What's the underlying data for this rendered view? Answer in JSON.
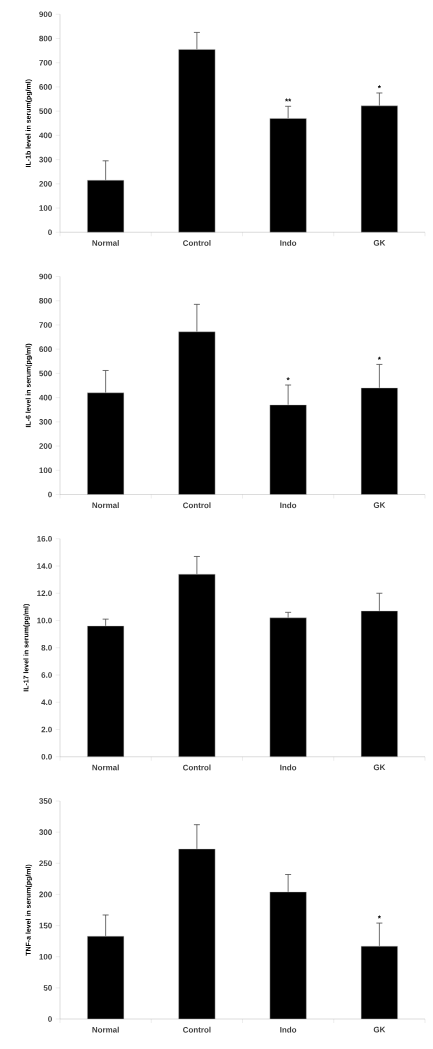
{
  "chart_data": [
    {
      "type": "bar",
      "ylabel": "IL-1b level in serum(pg/ml)",
      "categories": [
        "Normal",
        "Control",
        "Indo",
        "GK"
      ],
      "values": [
        215,
        755,
        470,
        522
      ],
      "errors": [
        [
          215,
          295
        ],
        [
          755,
          825
        ],
        [
          470,
          520
        ],
        [
          522,
          575
        ]
      ],
      "color": "#000000",
      "ylim": [
        0,
        900
      ],
      "yticks": [
        0,
        100,
        200,
        300,
        400,
        500,
        600,
        700,
        800,
        900
      ],
      "annotations": [
        {
          "text": "**",
          "x": "Indo",
          "y": 520
        },
        {
          "text": "*",
          "x": "GK",
          "y": 575
        }
      ]
    },
    {
      "type": "bar",
      "ylabel": "IL-6 level in serum(pg/ml)",
      "categories": [
        "Normal",
        "Control",
        "Indo",
        "GK"
      ],
      "values": [
        420,
        672,
        370,
        440
      ],
      "errors": [
        [
          420,
          512
        ],
        [
          672,
          785
        ],
        [
          370,
          452
        ],
        [
          440,
          537
        ]
      ],
      "color": "#000000",
      "ylim": [
        0,
        900
      ],
      "yticks": [
        0,
        100,
        200,
        300,
        400,
        500,
        600,
        700,
        800,
        900
      ],
      "annotations": [
        {
          "text": "*",
          "x": "Indo",
          "y": 452
        },
        {
          "text": "*",
          "x": "GK",
          "y": 537
        }
      ]
    },
    {
      "type": "bar",
      "ylabel": "IL-17 level in serum(pg/ml)",
      "categories": [
        "Normal",
        "Control",
        "Indo",
        "GK"
      ],
      "values": [
        9.6,
        13.4,
        10.2,
        10.7
      ],
      "errors": [
        [
          9.6,
          10.1
        ],
        [
          13.4,
          14.7
        ],
        [
          10.2,
          10.6
        ],
        [
          10.7,
          12.0
        ]
      ],
      "color": "#000000",
      "ylim": [
        0,
        16
      ],
      "yticks": [
        {
          "value": 0,
          "label": "0.0"
        },
        {
          "value": 2,
          "label": "2.0"
        },
        {
          "value": 4,
          "label": "4.0"
        },
        {
          "value": 6,
          "label": "6.0"
        },
        {
          "value": 8,
          "label": "8.0"
        },
        {
          "value": 10,
          "label": "10.0"
        },
        {
          "value": 12,
          "label": "12.0"
        },
        {
          "value": 14,
          "label": "14.0"
        },
        {
          "value": 16,
          "label": "16.0"
        }
      ]
    },
    {
      "type": "bar",
      "ylabel": "TNF-a level in serum(pg/ml)",
      "categories": [
        "Normal",
        "Control",
        "Indo",
        "GK"
      ],
      "values": [
        133,
        273,
        204,
        117
      ],
      "errors": [
        [
          133,
          167
        ],
        [
          273,
          312
        ],
        [
          204,
          232
        ],
        [
          117,
          154
        ]
      ],
      "color": "#000000",
      "ylim": [
        0,
        350
      ],
      "yticks": [
        0,
        50,
        100,
        150,
        200,
        250,
        300,
        350
      ],
      "annotations": [
        {
          "text": "*",
          "x": "GK",
          "y": 154
        }
      ]
    }
  ]
}
